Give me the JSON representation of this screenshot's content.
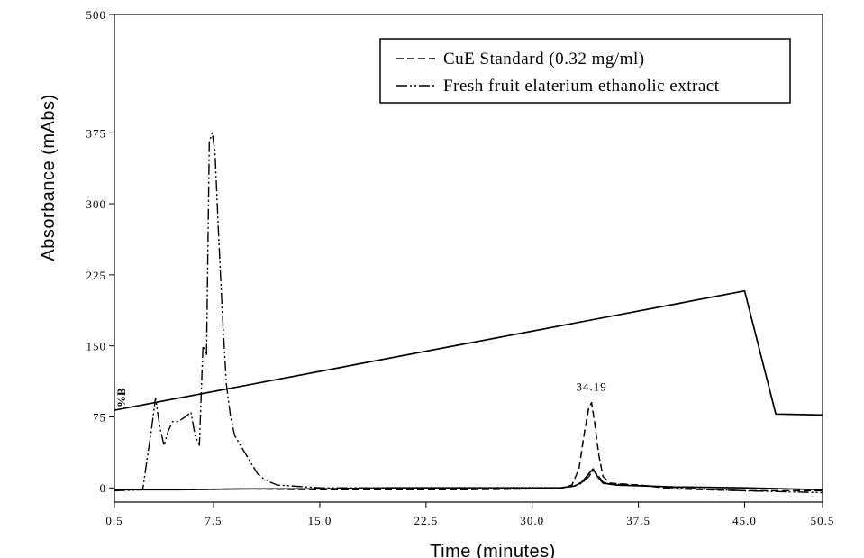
{
  "chart_data": {
    "type": "line",
    "xlabel": "Time (minutes)",
    "ylabel": "Absorbance (mAbs)",
    "xlim": [
      0.5,
      50.5
    ],
    "ylim": [
      -15,
      500
    ],
    "x_ticks": [
      "0.5",
      "7.5",
      "15.0",
      "22.5",
      "30.0",
      "37.5",
      "45.0",
      "50.5"
    ],
    "x_tick_values": [
      0.5,
      7.5,
      15.0,
      22.5,
      30.0,
      37.5,
      45.0,
      50.5
    ],
    "y_ticks": [
      "0",
      "75",
      "150",
      "225",
      "300",
      "375",
      "500"
    ],
    "y_tick_values": [
      0,
      75,
      150,
      225,
      300,
      375,
      500
    ],
    "legend_position": "top-right",
    "gradient_label": "%B",
    "annotations": [
      {
        "text": "34.19",
        "x": 34.19,
        "y": 95
      }
    ],
    "series": [
      {
        "name": "CuE Standard (0.32 mg/ml)",
        "style": "dashed",
        "x": [
          0.5,
          5,
          10,
          15,
          20,
          25,
          30,
          32.2,
          32.8,
          33.3,
          33.7,
          34.0,
          34.19,
          34.4,
          34.7,
          35.0,
          35.5,
          37.5,
          40,
          45,
          50.5
        ],
        "y": [
          -2,
          -2,
          -1,
          -2,
          -2,
          -2,
          -1,
          0,
          3,
          20,
          60,
          85,
          90,
          70,
          35,
          12,
          5,
          3,
          -1,
          -3,
          -3
        ]
      },
      {
        "name": "Fresh fruit elaterium ethanolic extract",
        "style": "dash-dot-dot",
        "x": [
          0.5,
          2.5,
          2.8,
          3.1,
          3.4,
          3.7,
          4.0,
          4.3,
          4.6,
          5.0,
          5.5,
          5.9,
          6.2,
          6.5,
          6.75,
          7.0,
          7.2,
          7.4,
          7.6,
          7.85,
          8.1,
          8.4,
          8.7,
          9.0,
          9.4,
          9.8,
          10.2,
          10.6,
          11.0,
          11.5,
          12.0,
          13.0,
          15.0,
          20.0,
          25.0,
          30.0,
          32.0,
          33.0,
          33.5,
          34.0,
          34.3,
          34.6,
          35.0,
          35.5,
          37.5,
          40.0,
          45.0,
          50.5
        ],
        "y": [
          -3,
          -2,
          30,
          60,
          95,
          65,
          45,
          60,
          70,
          70,
          75,
          80,
          55,
          45,
          150,
          140,
          365,
          375,
          355,
          270,
          190,
          110,
          75,
          55,
          45,
          35,
          25,
          15,
          10,
          6,
          3,
          2,
          0,
          0,
          0,
          0,
          0,
          2,
          5,
          12,
          18,
          14,
          6,
          4,
          3,
          0,
          -3,
          -5
        ]
      },
      {
        "name": "",
        "style": "solid",
        "x": [
          0.5,
          5,
          10,
          15,
          20,
          25,
          30,
          32,
          33.0,
          33.5,
          34.0,
          34.3,
          34.6,
          35.0,
          36.0,
          38,
          40,
          45,
          48,
          50.5
        ],
        "y": [
          -2,
          -2,
          -1,
          -1,
          0,
          0,
          0,
          0,
          2,
          6,
          15,
          20,
          12,
          5,
          3,
          2,
          1,
          0,
          -1,
          -2
        ]
      },
      {
        "name": "%B",
        "style": "solid",
        "x": [
          0.5,
          45.0,
          47.2,
          50.5
        ],
        "y": [
          82,
          208,
          78,
          77
        ]
      }
    ]
  }
}
